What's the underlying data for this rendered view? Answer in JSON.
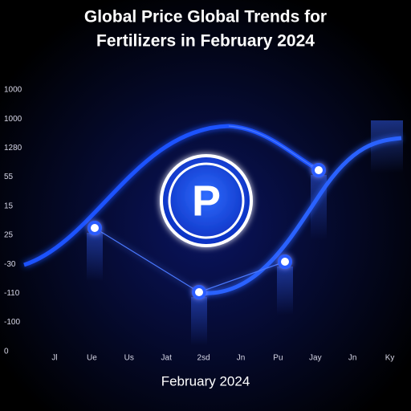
{
  "header": {
    "title_lines": [
      "Global Price Global Trends for",
      "Fertilizers in February 2024"
    ]
  },
  "y_labels": [
    "1000",
    "1000",
    "1280",
    "55",
    "15",
    "25",
    "-30",
    "-110",
    "-100",
    "0"
  ],
  "x_labels": [
    "Jl",
    "Ue",
    "Us",
    "Jat",
    "2sd",
    "Jn",
    "Pu",
    "Jay",
    "Jn",
    "Ky"
  ],
  "logo": {
    "letter": "P"
  },
  "footer": {
    "caption": "February 2024"
  }
}
